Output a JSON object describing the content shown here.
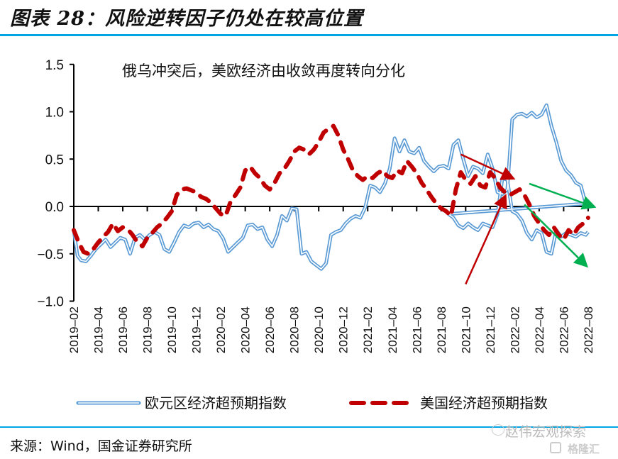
{
  "header": {
    "figure_title": "图表 28：风险逆转因子仍处在较高位置"
  },
  "footer": {
    "source": "来源：Wind，国金证券研究所",
    "watermark": "赵伟宏观探索",
    "watermark_brand": "格隆汇"
  },
  "colors": {
    "rule": "#00A6E3",
    "eurozone": "#5B9BD5",
    "us": "#C00000",
    "arrow_red": "#C00000",
    "arrow_green": "#00B050"
  },
  "chart_data": {
    "type": "line",
    "title": "",
    "annotation": "俄乌冲突后，美欧经济由收敛再度转向分化",
    "xlabel": "",
    "ylabel": "",
    "ylim": [
      -1.0,
      1.5
    ],
    "yticks": [
      "1.5",
      "1.0",
      "0.5",
      "0.0",
      "−0.5",
      "−1.0"
    ],
    "ytick_values": [
      1.5,
      1.0,
      0.5,
      0.0,
      -0.5,
      -1.0
    ],
    "x_unit": "months since 2019-02",
    "xlim": [
      0,
      42
    ],
    "xticks": [
      "2019–02",
      "2019–04",
      "2019–06",
      "2019–08",
      "2019–10",
      "2019–12",
      "2020–02",
      "2020–04",
      "2020–06",
      "2020–08",
      "2020–10",
      "2020–12",
      "2021–02",
      "2021–04",
      "2021–06",
      "2021–08",
      "2021–10",
      "2021–12",
      "2022–02",
      "2022–04",
      "2022–06",
      "2022–08"
    ],
    "legend_position": "bottom",
    "series": [
      {
        "name": "欧元区经济超预期指数",
        "style": "double-line",
        "x": [
          0,
          0.3,
          0.6,
          1,
          1.4,
          1.8,
          2.2,
          2.6,
          3,
          3.4,
          3.8,
          4.2,
          4.6,
          5,
          5.4,
          5.8,
          6.2,
          6.6,
          7,
          7.4,
          7.8,
          8.2,
          8.6,
          9,
          9.4,
          9.8,
          10.2,
          10.6,
          11,
          11.4,
          11.8,
          12.2,
          12.6,
          13,
          13.4,
          13.8,
          14.2,
          14.6,
          15,
          15.4,
          15.8,
          16.2,
          16.6,
          17,
          17.4,
          17.8,
          18.2,
          18.6,
          19,
          19.4,
          19.8,
          20.2,
          20.6,
          21,
          21.4,
          21.8,
          22.2,
          22.6,
          23,
          23.4,
          23.8,
          24.2,
          24.6,
          25,
          25.4,
          25.8,
          26.2,
          26.6,
          27,
          27.4,
          27.8,
          28.2,
          28.6,
          29,
          29.4,
          29.8,
          30.2,
          30.6,
          31,
          31.4,
          31.8,
          32.2,
          32.6,
          33,
          33.4,
          33.8,
          34.2,
          34.6,
          35,
          35.4,
          35.8,
          36.2,
          36.6,
          37,
          37.4,
          37.8,
          38.2,
          38.6,
          39,
          39.4,
          39.8,
          40.2,
          40.6,
          41,
          41.4,
          41.8
        ],
        "values": [
          -0.25,
          -0.52,
          -0.57,
          -0.58,
          -0.52,
          -0.45,
          -0.4,
          -0.35,
          -0.43,
          -0.38,
          -0.33,
          -0.35,
          -0.5,
          -0.33,
          -0.3,
          -0.35,
          -0.3,
          -0.27,
          -0.3,
          -0.45,
          -0.48,
          -0.38,
          -0.27,
          -0.2,
          -0.22,
          -0.18,
          -0.17,
          -0.22,
          -0.19,
          -0.24,
          -0.26,
          -0.34,
          -0.48,
          -0.43,
          -0.38,
          -0.33,
          -0.2,
          -0.19,
          -0.24,
          -0.22,
          -0.35,
          -0.42,
          -0.3,
          -0.1,
          -0.15,
          -0.02,
          -0.03,
          -0.5,
          -0.48,
          -0.58,
          -0.62,
          -0.66,
          -0.6,
          -0.3,
          -0.27,
          -0.25,
          -0.18,
          -0.13,
          -0.1,
          -0.12,
          -0.01,
          0.22,
          0.2,
          0.15,
          0.24,
          0.4,
          0.72,
          0.58,
          0.7,
          0.58,
          0.56,
          0.62,
          0.48,
          0.42,
          0.37,
          0.42,
          0.43,
          0.4,
          0.65,
          0.7,
          0.5,
          0.32,
          0.42,
          0.4,
          0.35,
          0.55,
          0.4,
          0.15,
          0.13,
          0.18,
          0.92,
          0.97,
          0.98,
          0.95,
          0.99,
          0.94,
          0.97,
          1.07,
          0.85,
          0.68,
          0.48,
          0.38,
          0.33,
          0.25,
          0.22,
          0.03
        ],
        "values_tail": {
          "x": [
            30.2,
            30.6,
            31,
            31.4,
            31.8,
            32.2,
            32.6,
            33,
            33.4,
            33.8,
            34.2,
            34.6,
            35,
            35.4,
            35.8,
            36.2,
            36.6,
            37,
            37.4,
            37.8,
            38.2,
            38.6,
            39,
            39.4,
            39.8,
            40.2,
            40.6,
            41,
            41.4,
            41.8,
            42
          ],
          "values": [
            0.03,
            -0.08,
            -0.12,
            -0.2,
            -0.23,
            -0.18,
            -0.22,
            -0.25,
            -0.18,
            -0.2,
            -0.22,
            -0.08,
            0.3,
            0.28,
            -0.05,
            -0.08,
            -0.15,
            -0.28,
            -0.35,
            -0.25,
            -0.28,
            -0.48,
            -0.5,
            -0.25,
            -0.32,
            -0.28,
            -0.3,
            -0.32,
            -0.28,
            -0.3,
            -0.27
          ]
        }
      },
      {
        "name": "美国经济超预期指数",
        "style": "dashed",
        "x": [
          0,
          0.4,
          0.8,
          1.2,
          1.6,
          2,
          2.4,
          2.8,
          3.2,
          3.6,
          4,
          4.4,
          4.8,
          5.2,
          5.6,
          6,
          6.4,
          6.8,
          7.2,
          7.6,
          8,
          8.4,
          8.8,
          9.2,
          9.6,
          10,
          10.4,
          10.8,
          11.2,
          11.6,
          12,
          12.4,
          12.8,
          13.2,
          13.6,
          14,
          14.4,
          14.8,
          15.2,
          15.6,
          16,
          16.4,
          16.8,
          17.2,
          17.6,
          18,
          18.4,
          18.8,
          19.2,
          19.6,
          20,
          20.4,
          20.8,
          21.2,
          21.6,
          22,
          22.4,
          22.8,
          23.2,
          23.6,
          24,
          24.4,
          24.8,
          25.2,
          25.6,
          26,
          26.4,
          26.8,
          27.2,
          27.6,
          28,
          28.4,
          28.8,
          29.2,
          29.6,
          30,
          30.4,
          30.8,
          31.2,
          31.6,
          32,
          32.4,
          32.8,
          33.2,
          33.6,
          34,
          34.4,
          34.8,
          35.2,
          35.6,
          36,
          36.4,
          36.8,
          37.2,
          37.6,
          38,
          38.4,
          38.8,
          39.2,
          39.6,
          40,
          40.4,
          40.8,
          41.2,
          41.6,
          42
        ],
        "values": [
          -0.25,
          -0.38,
          -0.48,
          -0.5,
          -0.45,
          -0.38,
          -0.32,
          -0.27,
          -0.18,
          -0.26,
          -0.22,
          -0.24,
          -0.3,
          -0.38,
          -0.42,
          -0.33,
          -0.28,
          -0.22,
          -0.18,
          -0.12,
          -0.05,
          0.12,
          0.18,
          0.19,
          0.17,
          0.15,
          0.1,
          0.08,
          0.04,
          -0.02,
          -0.08,
          -0.1,
          0.05,
          0.12,
          0.2,
          0.38,
          0.42,
          0.35,
          0.3,
          0.22,
          0.18,
          0.25,
          0.35,
          0.4,
          0.48,
          0.58,
          0.62,
          0.6,
          0.55,
          0.6,
          0.68,
          0.78,
          0.82,
          0.85,
          0.75,
          0.6,
          0.5,
          0.38,
          0.32,
          0.28,
          0.32,
          0.3,
          0.35,
          0.38,
          0.32,
          0.3,
          0.38,
          0.35,
          0.48,
          0.42,
          0.35,
          0.25,
          0.18,
          0.1,
          0.03,
          -0.02,
          -0.05,
          -0.1,
          0.18,
          0.36,
          0.28,
          0.24,
          0.32,
          0.22,
          0.2,
          0.36,
          0.3,
          0.2,
          0.15,
          0.12,
          0.15,
          0.18,
          0.12,
          0.02,
          -0.1,
          -0.18,
          -0.25,
          -0.3,
          -0.22,
          -0.3,
          -0.35,
          -0.25,
          -0.3,
          -0.22,
          -0.18,
          -0.12
        ]
      }
    ],
    "arrows": [
      {
        "color": "red",
        "from": [
          31.6,
          0.55
        ],
        "to": [
          35.8,
          0.3
        ]
      },
      {
        "color": "red",
        "from": [
          32,
          -0.82
        ],
        "to": [
          35.2,
          0.1
        ]
      },
      {
        "color": "green",
        "from": [
          37.2,
          0.24
        ],
        "to": [
          42.4,
          0.0
        ]
      },
      {
        "color": "green",
        "from": [
          36.8,
          0.02
        ],
        "to": [
          41.8,
          -0.62
        ]
      }
    ]
  }
}
